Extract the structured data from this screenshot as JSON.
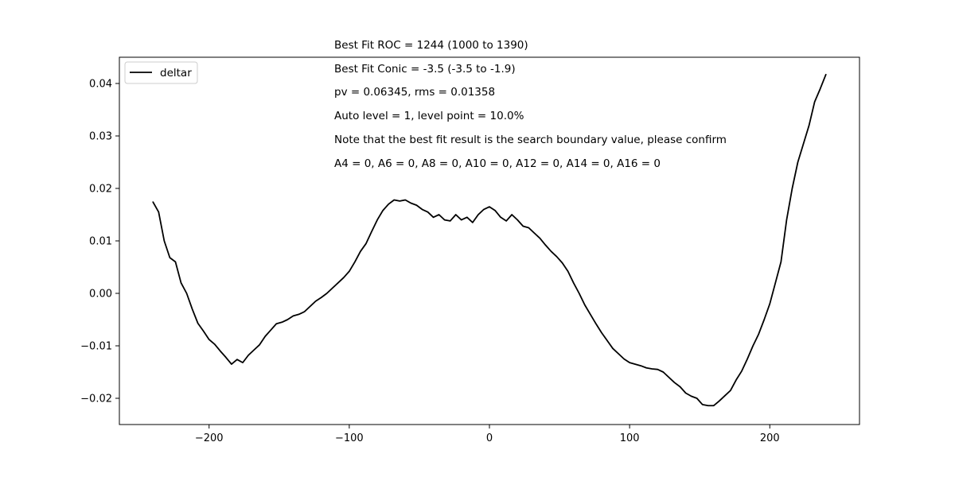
{
  "chart_data": {
    "type": "line",
    "title": "",
    "xlabel": "",
    "ylabel": "",
    "xlim": [
      -264,
      264
    ],
    "ylim": [
      -0.025,
      0.045
    ],
    "xticks": [
      {
        "value": -200,
        "label": "−200"
      },
      {
        "value": -100,
        "label": "−100"
      },
      {
        "value": 0,
        "label": "0"
      },
      {
        "value": 100,
        "label": "100"
      },
      {
        "value": 200,
        "label": "200"
      }
    ],
    "yticks": [
      {
        "value": -0.02,
        "label": "−0.02"
      },
      {
        "value": -0.01,
        "label": "−0.01"
      },
      {
        "value": 0.0,
        "label": "0.00"
      },
      {
        "value": 0.01,
        "label": "0.01"
      },
      {
        "value": 0.02,
        "label": "0.02"
      },
      {
        "value": 0.03,
        "label": "0.03"
      },
      {
        "value": 0.04,
        "label": "0.04"
      }
    ],
    "grid": false,
    "legend_position": "top-left",
    "series": [
      {
        "name": "deltar",
        "color": "#000000",
        "x": [
          -240,
          -236,
          -232,
          -228,
          -224,
          -220,
          -216,
          -212,
          -208,
          -204,
          -200,
          -196,
          -192,
          -188,
          -184,
          -180,
          -176,
          -172,
          -168,
          -164,
          -160,
          -156,
          -152,
          -148,
          -144,
          -140,
          -136,
          -132,
          -128,
          -124,
          -120,
          -116,
          -112,
          -108,
          -104,
          -100,
          -96,
          -92,
          -88,
          -84,
          -80,
          -76,
          -72,
          -68,
          -64,
          -60,
          -56,
          -52,
          -48,
          -44,
          -40,
          -36,
          -32,
          -28,
          -24,
          -20,
          -16,
          -12,
          -8,
          -4,
          0,
          4,
          8,
          12,
          16,
          20,
          24,
          28,
          32,
          36,
          40,
          44,
          48,
          52,
          56,
          60,
          64,
          68,
          72,
          76,
          80,
          84,
          88,
          92,
          96,
          100,
          104,
          108,
          112,
          116,
          120,
          124,
          128,
          132,
          136,
          140,
          144,
          148,
          152,
          156,
          160,
          164,
          168,
          172,
          176,
          180,
          184,
          188,
          192,
          196,
          200,
          204,
          208,
          212,
          216,
          220,
          224,
          228,
          232,
          236,
          240
        ],
        "y": [
          0.0174,
          0.0155,
          0.01,
          0.0068,
          0.006,
          0.002,
          0.0,
          -0.003,
          -0.0057,
          -0.0072,
          -0.0088,
          -0.0097,
          -0.011,
          -0.0122,
          -0.0135,
          -0.0126,
          -0.0132,
          -0.0118,
          -0.0108,
          -0.0098,
          -0.0082,
          -0.007,
          -0.0058,
          -0.0055,
          -0.005,
          -0.0043,
          -0.004,
          -0.0035,
          -0.0025,
          -0.0015,
          -0.0008,
          0.0,
          0.001,
          0.002,
          0.003,
          0.0042,
          0.006,
          0.008,
          0.0095,
          0.0118,
          0.014,
          0.0158,
          0.017,
          0.0178,
          0.0176,
          0.0178,
          0.0172,
          0.0168,
          0.016,
          0.0155,
          0.0145,
          0.015,
          0.014,
          0.0138,
          0.015,
          0.014,
          0.0145,
          0.0135,
          0.015,
          0.016,
          0.0165,
          0.0158,
          0.0145,
          0.0138,
          0.015,
          0.014,
          0.0128,
          0.0125,
          0.0115,
          0.0105,
          0.0092,
          0.008,
          0.007,
          0.0058,
          0.0042,
          0.002,
          0.0,
          -0.0022,
          -0.004,
          -0.0058,
          -0.0075,
          -0.009,
          -0.0105,
          -0.0115,
          -0.0125,
          -0.0132,
          -0.0135,
          -0.0138,
          -0.0142,
          -0.0144,
          -0.0145,
          -0.015,
          -0.016,
          -0.017,
          -0.0178,
          -0.019,
          -0.0196,
          -0.02,
          -0.0212,
          -0.0214,
          -0.0214,
          -0.0205,
          -0.0195,
          -0.0185,
          -0.0165,
          -0.0148,
          -0.0125,
          -0.01,
          -0.0078,
          -0.005,
          -0.002,
          0.002,
          0.006,
          0.014,
          0.02,
          0.025,
          0.0285,
          0.032,
          0.0365,
          0.039,
          0.0417
        ]
      }
    ],
    "annotations": [
      "Best Fit ROC = 1244  (1000 to 1390)",
      "Best Fit Conic = -3.5  (-3.5 to -1.9)",
      "pv = 0.06345, rms = 0.01358",
      "Auto level = 1, level point = 10.0%",
      "Note that the best fit result is the search boundary value, please confirm",
      "A4 = 0, A6 = 0, A8 = 0, A10 = 0, A12 = 0, A14 = 0, A16 = 0"
    ]
  }
}
